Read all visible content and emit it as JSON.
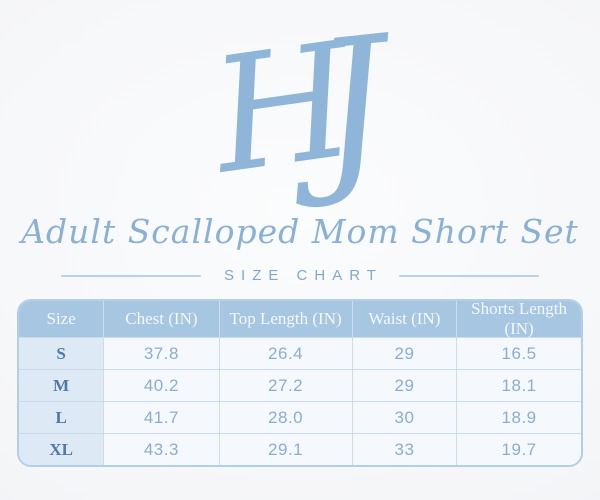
{
  "brand": {
    "monogram": "HJ",
    "monogram_letters": [
      "H",
      "J"
    ]
  },
  "title": "Adult Scalloped Mom Short Set",
  "subtitle": "SIZE CHART",
  "colors": {
    "monogram_blue": "#8fb5d9",
    "title_blue": "#8ab1d5",
    "subtitle_blue": "#7ea9d0",
    "divider_line": "#b9d0e6",
    "table_border": "#b2cfe9",
    "header_bg": "#a7c6e2",
    "header_text": "#f3f8fc",
    "size_col_bg": "#dde9f4",
    "size_letter_text": "#4e7aa8",
    "value_text": "#8aaed2",
    "cell_bg": "#f5f8fc",
    "grid_line": "#c8dbec"
  },
  "chart_data": {
    "type": "table",
    "title": "Adult Scalloped Mom Short Set — Size Chart",
    "columns": [
      "Size",
      "Chest (IN)",
      "Top Length (IN)",
      "Waist (IN)",
      "Shorts Length (IN)"
    ],
    "rows": [
      [
        "S",
        "37.8",
        "26.4",
        "29",
        "16.5"
      ],
      [
        "M",
        "40.2",
        "27.2",
        "29",
        "18.1"
      ],
      [
        "L",
        "41.7",
        "28.0",
        "30",
        "18.9"
      ],
      [
        "XL",
        "43.3",
        "29.1",
        "33",
        "19.7"
      ]
    ]
  },
  "table": {
    "columns": [
      "Size",
      "Chest (IN)",
      "Top Length (IN)",
      "Waist (IN)",
      "Shorts Length (IN)"
    ],
    "rows": [
      {
        "cells": [
          "S",
          "37.8",
          "26.4",
          "29",
          "16.5"
        ]
      },
      {
        "cells": [
          "M",
          "40.2",
          "27.2",
          "29",
          "18.1"
        ]
      },
      {
        "cells": [
          "L",
          "41.7",
          "28.0",
          "30",
          "18.9"
        ]
      },
      {
        "cells": [
          "XL",
          "43.3",
          "29.1",
          "33",
          "19.7"
        ]
      }
    ]
  }
}
